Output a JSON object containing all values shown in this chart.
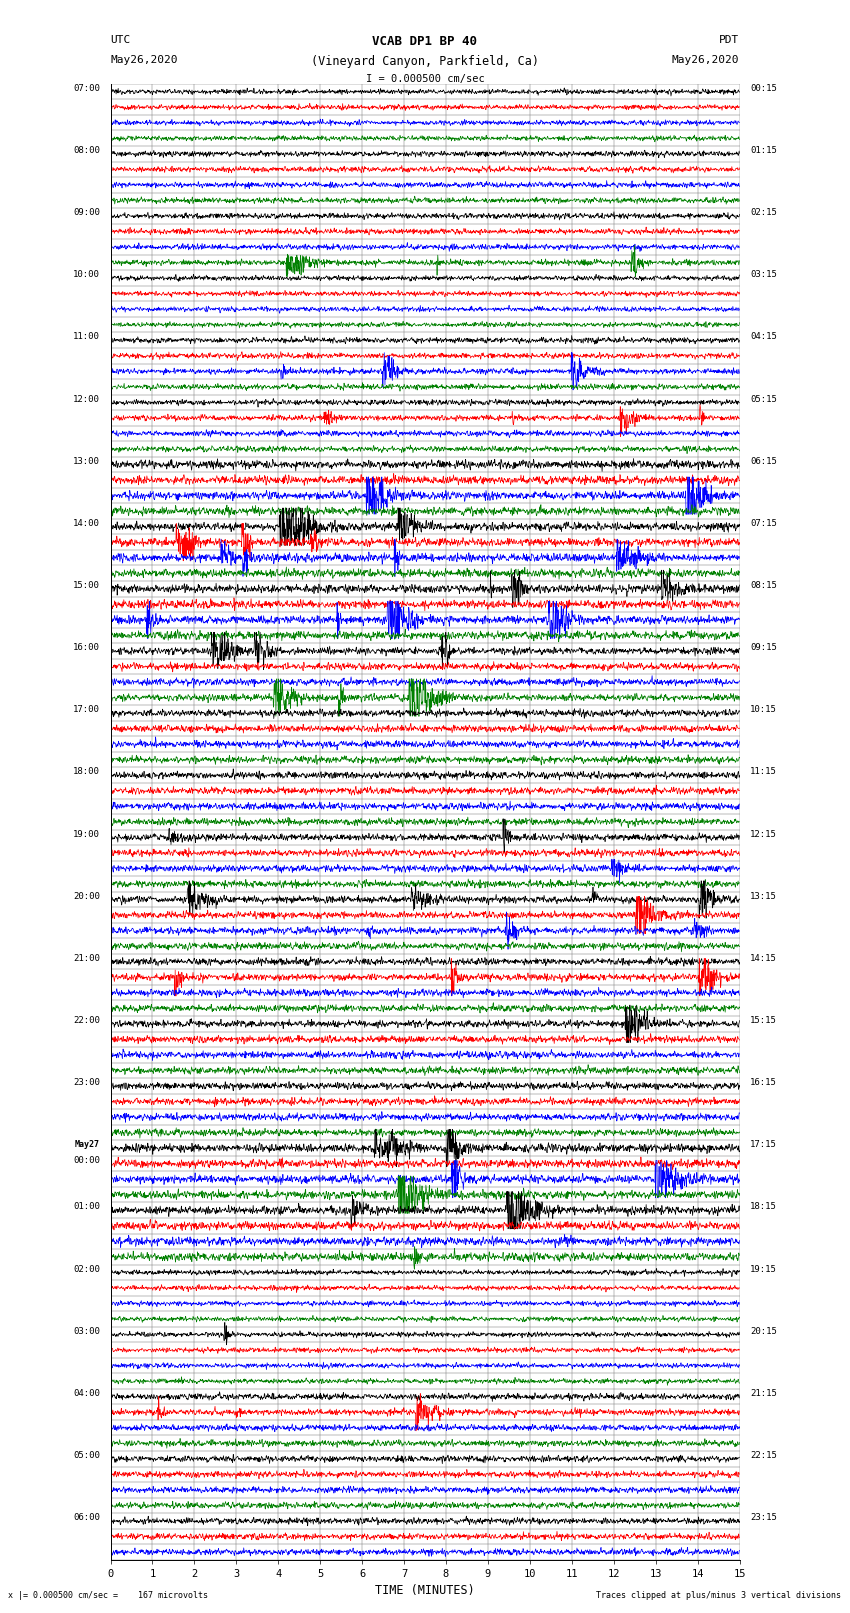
{
  "title_line1": "VCAB DP1 BP 40",
  "title_line2": "(Vineyard Canyon, Parkfield, Ca)",
  "scale_label": "I = 0.000500 cm/sec",
  "left_header_line1": "UTC",
  "left_header_line2": "May26,2020",
  "right_header_line1": "PDT",
  "right_header_line2": "May26,2020",
  "xlabel": "TIME (MINUTES)",
  "footer_left": "x |= 0.000500 cm/sec =    167 microvolts",
  "footer_right": "Traces clipped at plus/minus 3 vertical divisions",
  "utc_labels": [
    "07:00",
    "",
    "",
    "",
    "08:00",
    "",
    "",
    "",
    "09:00",
    "",
    "",
    "",
    "10:00",
    "",
    "",
    "",
    "11:00",
    "",
    "",
    "",
    "12:00",
    "",
    "",
    "",
    "13:00",
    "",
    "",
    "",
    "14:00",
    "",
    "",
    "",
    "15:00",
    "",
    "",
    "",
    "16:00",
    "",
    "",
    "",
    "17:00",
    "",
    "",
    "",
    "18:00",
    "",
    "",
    "",
    "19:00",
    "",
    "",
    "",
    "20:00",
    "",
    "",
    "",
    "21:00",
    "",
    "",
    "",
    "22:00",
    "",
    "",
    "",
    "23:00",
    "",
    "",
    "",
    "May27",
    "00:00",
    "",
    "",
    "01:00",
    "",
    "",
    "",
    "02:00",
    "",
    "",
    "",
    "03:00",
    "",
    "",
    "",
    "04:00",
    "",
    "",
    "",
    "05:00",
    "",
    "",
    "",
    "06:00",
    "",
    ""
  ],
  "pdt_labels": [
    "00:15",
    "",
    "",
    "",
    "01:15",
    "",
    "",
    "",
    "02:15",
    "",
    "",
    "",
    "03:15",
    "",
    "",
    "",
    "04:15",
    "",
    "",
    "",
    "05:15",
    "",
    "",
    "",
    "06:15",
    "",
    "",
    "",
    "07:15",
    "",
    "",
    "",
    "08:15",
    "",
    "",
    "",
    "09:15",
    "",
    "",
    "",
    "10:15",
    "",
    "",
    "",
    "11:15",
    "",
    "",
    "",
    "12:15",
    "",
    "",
    "",
    "13:15",
    "",
    "",
    "",
    "14:15",
    "",
    "",
    "",
    "15:15",
    "",
    "",
    "",
    "16:15",
    "",
    "",
    "",
    "17:15",
    "",
    "",
    "",
    "18:15",
    "",
    "",
    "",
    "19:15",
    "",
    "",
    "",
    "20:15",
    "",
    "",
    "",
    "21:15",
    "",
    "",
    "",
    "22:15",
    "",
    "",
    "",
    "23:15",
    "",
    ""
  ],
  "colors": [
    "black",
    "red",
    "blue",
    "green"
  ],
  "minutes": 15,
  "background_color": "white",
  "grid_color": "#777777",
  "seed": 12345
}
